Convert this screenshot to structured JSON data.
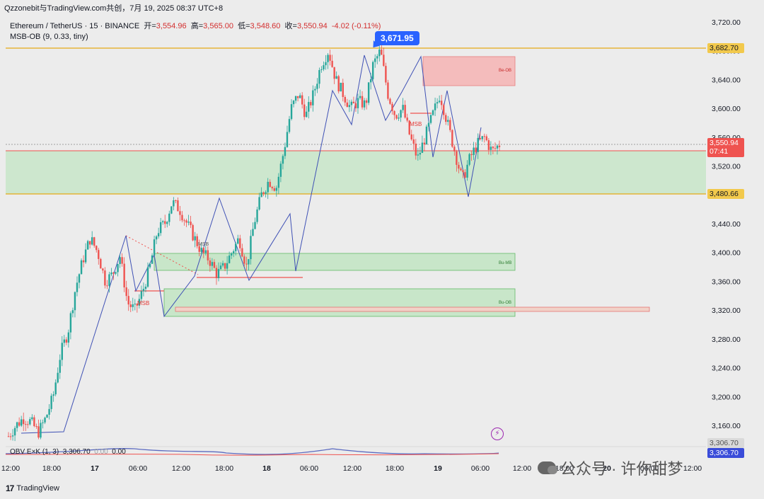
{
  "window": {
    "title": "Qzzonebit与TradingView.com共创，7月 19, 2025 08:37 UTC+8"
  },
  "legend": {
    "symbol": "Ethereum / TetherUS · 15 · BINANCE",
    "open_label": "开=",
    "open": "3,554.96",
    "high_label": "高=",
    "high": "3,565.00",
    "low_label": "低=",
    "low": "3,548.60",
    "close_label": "收=",
    "close": "3,550.94",
    "change": "-4.02 (-0.11%)",
    "indicator": "MSB-OB (9, 0.33, tiny)"
  },
  "callout": "3,671.95",
  "price_axis": {
    "ticks": [
      "3,720.00",
      "3,680.00",
      "3,640.00",
      "3,600.00",
      "3,560.00",
      "3,520.00",
      "3,480.00",
      "3,440.00",
      "3,400.00",
      "3,360.00",
      "3,320.00",
      "3,280.00",
      "3,240.00",
      "3,200.00",
      "3,160.00"
    ],
    "tag_high": "3,682.70",
    "tag_current": "3,550.94",
    "tag_countdown": "07:41",
    "tag_low": "3,480.66",
    "tag_obv_top": "3,306.70",
    "tag_obv": "3,306.70"
  },
  "annotations": {
    "msb1": "MSB",
    "msb2": "MSB",
    "msb3": "MSB",
    "bu_ob_top": "Be-OB",
    "bu_mb": "Bu-MB",
    "bu_ob": "Bu-OB"
  },
  "obv": {
    "label": "OBV E×K (1, 3)",
    "value": "3,306.70",
    "ghost": "0.00",
    "ghost2": "0.00"
  },
  "time_axis": [
    {
      "t": "12:00",
      "b": false
    },
    {
      "t": "18:00",
      "b": false
    },
    {
      "t": "17",
      "b": true
    },
    {
      "t": "06:00",
      "b": false
    },
    {
      "t": "12:00",
      "b": false
    },
    {
      "t": "18:00",
      "b": false
    },
    {
      "t": "18",
      "b": true
    },
    {
      "t": "06:00",
      "b": false
    },
    {
      "t": "12:00",
      "b": false
    },
    {
      "t": "18:00",
      "b": false
    },
    {
      "t": "19",
      "b": true
    },
    {
      "t": "06:00",
      "b": false
    },
    {
      "t": "12:00",
      "b": false
    },
    {
      "t": "18:00",
      "b": false
    },
    {
      "t": "20",
      "b": true
    },
    {
      "t": "06:00",
      "b": false
    },
    {
      "t": "12:00",
      "b": false
    }
  ],
  "footer": {
    "brand": "TradingView",
    "logo": "17"
  },
  "watermark": "公众号 · 许你甜梦",
  "colors": {
    "up": "#26a69a",
    "down": "#ef5350",
    "zone_green": "#c8e6c9",
    "zone_red": "#f5b7b7",
    "line_orange": "#e6a817"
  },
  "chart_data": {
    "type": "candlestick",
    "ylim": [
      3140,
      3730
    ],
    "close_path": [
      3145,
      3160,
      3170,
      3165,
      3150,
      3170,
      3200,
      3260,
      3290,
      3350,
      3390,
      3420,
      3400,
      3360,
      3370,
      3395,
      3330,
      3320,
      3345,
      3380,
      3430,
      3440,
      3470,
      3460,
      3440,
      3420,
      3400,
      3390,
      3370,
      3380,
      3400,
      3420,
      3380,
      3440,
      3480,
      3500,
      3490,
      3540,
      3600,
      3620,
      3590,
      3620,
      3660,
      3680,
      3640,
      3620,
      3600,
      3610,
      3605,
      3660,
      3680,
      3620,
      3590,
      3600,
      3560,
      3530,
      3560,
      3590,
      3620,
      3580,
      3540,
      3500,
      3530,
      3550,
      3560,
      3540,
      3550
    ]
  }
}
